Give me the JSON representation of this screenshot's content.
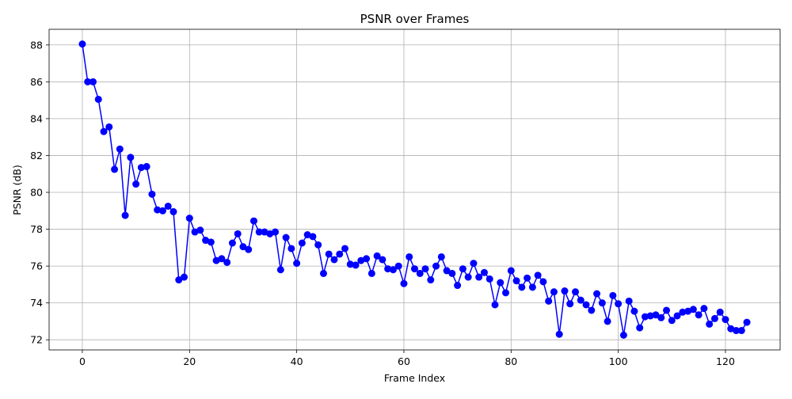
{
  "chart_data": {
    "type": "line",
    "title": "PSNR over Frames",
    "xlabel": "Frame Index",
    "ylabel": "PSNR (dB)",
    "xlim": [
      -6.2,
      130.2
    ],
    "ylim": [
      71.45,
      88.85
    ],
    "xticks": [
      0,
      20,
      40,
      60,
      80,
      100,
      120
    ],
    "yticks": [
      72,
      74,
      76,
      78,
      80,
      82,
      84,
      86,
      88
    ],
    "grid": true,
    "line_color": "#0000ff",
    "marker": "circle",
    "series": [
      {
        "x": [
          0,
          1,
          2,
          3,
          4,
          5,
          6,
          7,
          8,
          9,
          10,
          11,
          12,
          13,
          14,
          15,
          16,
          17,
          18,
          19,
          20,
          21,
          22,
          23,
          24,
          25,
          26,
          27,
          28,
          29,
          30,
          31,
          32,
          33,
          34,
          35,
          36,
          37,
          38,
          39,
          40,
          41,
          42,
          43,
          44,
          45,
          46,
          47,
          48,
          49,
          50,
          51,
          52,
          53,
          54,
          55,
          56,
          57,
          58,
          59,
          60,
          61,
          62,
          63,
          64,
          65,
          66,
          67,
          68,
          69,
          70,
          71,
          72,
          73,
          74,
          75,
          76,
          77,
          78,
          79,
          80,
          81,
          82,
          83,
          84,
          85,
          86,
          87,
          88,
          89,
          90,
          91,
          92,
          93,
          94,
          95,
          96,
          97,
          98,
          99,
          100,
          101,
          102,
          103,
          104,
          105,
          106,
          107,
          108,
          109,
          110,
          111,
          112,
          113,
          114,
          115,
          116,
          117,
          118,
          119,
          120,
          121,
          122,
          123,
          124
        ],
        "y": [
          88.05,
          86.0,
          86.0,
          85.05,
          83.3,
          83.55,
          81.25,
          82.35,
          78.75,
          81.9,
          80.45,
          81.35,
          81.4,
          79.9,
          79.05,
          79.0,
          79.25,
          78.95,
          75.25,
          75.4,
          78.6,
          77.85,
          77.95,
          77.4,
          77.3,
          76.3,
          76.4,
          76.2,
          77.25,
          77.75,
          77.05,
          76.9,
          78.45,
          77.85,
          77.85,
          77.75,
          77.85,
          75.8,
          77.55,
          76.95,
          76.15,
          77.25,
          77.7,
          77.6,
          77.15,
          75.6,
          76.65,
          76.35,
          76.65,
          76.95,
          76.1,
          76.05,
          76.3,
          76.4,
          75.6,
          76.55,
          76.35,
          75.85,
          75.8,
          76.0,
          75.05,
          76.5,
          75.85,
          75.6,
          75.85,
          75.25,
          76.0,
          76.5,
          75.75,
          75.6,
          74.95,
          75.85,
          75.4,
          76.15,
          75.4,
          75.65,
          75.3,
          73.9,
          75.1,
          74.55,
          75.75,
          75.2,
          74.85,
          75.35,
          74.85,
          75.5,
          75.15,
          74.1,
          74.6,
          72.3,
          74.65,
          73.95,
          74.6,
          74.15,
          73.9,
          73.6,
          74.5,
          74.0,
          73.0,
          74.4,
          73.95,
          72.25,
          74.1,
          73.55,
          72.65,
          73.25,
          73.3,
          73.35,
          73.2,
          73.6,
          73.05,
          73.3,
          73.5,
          73.55,
          73.65,
          73.35,
          73.7,
          72.85,
          73.15,
          73.5,
          73.1,
          72.6,
          72.5,
          72.5,
          72.95
        ]
      }
    ]
  }
}
